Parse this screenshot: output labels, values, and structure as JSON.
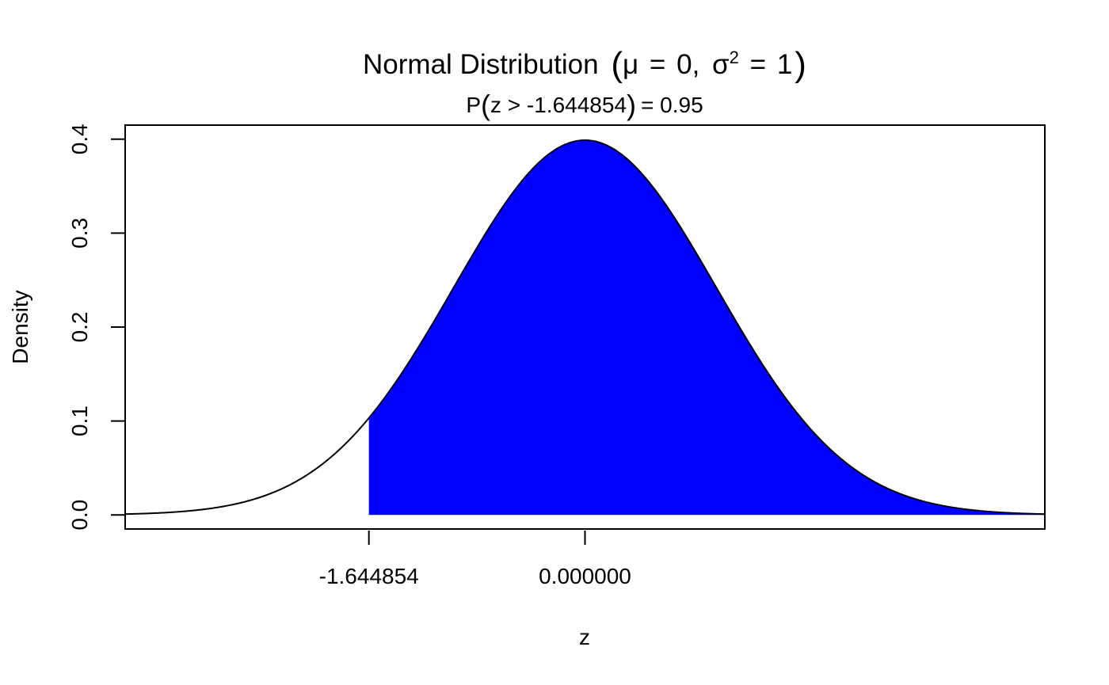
{
  "chart_data": {
    "type": "area",
    "title": {
      "prefix": "Normal Distribution",
      "mu_symbol": "μ",
      "mu_value": "0",
      "sigma_symbol": "σ",
      "sigma_power": "2",
      "sigma_value": "1"
    },
    "subtitle": {
      "prob_prefix": "P",
      "condition": "z > -1.644854",
      "result": "= 0.95"
    },
    "xlabel": "z",
    "ylabel": "Density",
    "xlim": [
      -3.5,
      3.5
    ],
    "ylim": [
      -0.015,
      0.415
    ],
    "x_ticks": [
      -1.644854,
      0
    ],
    "x_tick_labels": [
      "-1.644854",
      "0.000000"
    ],
    "y_ticks": [
      0.0,
      0.1,
      0.2,
      0.3,
      0.4
    ],
    "y_tick_labels": [
      "0.0",
      "0.1",
      "0.2",
      "0.3",
      "0.4"
    ],
    "distribution": {
      "name": "normal",
      "mean": 0,
      "variance": 1
    },
    "curve_range": [
      -3.5,
      3.5
    ],
    "shaded_region": {
      "from": -1.644854,
      "to": 3.5,
      "probability": 0.95
    },
    "curve_color": "#000000",
    "fill_color": "#0000ff",
    "grid": false,
    "legend": "none"
  }
}
